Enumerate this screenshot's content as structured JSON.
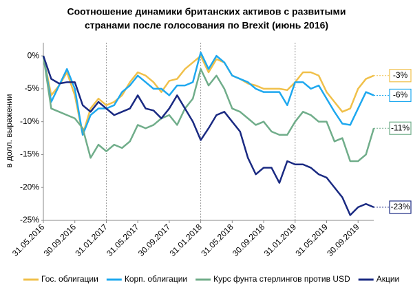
{
  "chart_data": {
    "type": "line",
    "title": [
      "Соотношение динамики британских активов с развитыми",
      "странами после голосования по Brexit (июнь 2016)"
    ],
    "y_label": "в долл. выражении",
    "categories": [
      "31.05.2016",
      null,
      null,
      null,
      "30.09.2016",
      null,
      null,
      null,
      "31.01.2017",
      null,
      null,
      null,
      "31.05.2017",
      null,
      null,
      null,
      "30.09.2017",
      null,
      null,
      null,
      "31.01.2018",
      null,
      null,
      null,
      "31.05.2018",
      null,
      null,
      null,
      "30.09.2018",
      null,
      null,
      null,
      "31.01.2019",
      null,
      null,
      null,
      "31.05.2019",
      null,
      null,
      null,
      "30.09.2019",
      null,
      null
    ],
    "ylim": [
      -25,
      2
    ],
    "yticks": [
      {
        "value": 0,
        "label": "0%"
      },
      {
        "value": -5,
        "label": "-5%"
      },
      {
        "value": -10,
        "label": "-10%"
      },
      {
        "value": -15,
        "label": "-15%"
      },
      {
        "value": -20,
        "label": "-20%"
      },
      {
        "value": -25,
        "label": "-25%"
      }
    ],
    "vlines": [
      8,
      20,
      32
    ],
    "grid": false,
    "legend": "bottom",
    "series": [
      {
        "name": "Гос. облигации",
        "color": "#f0c04a",
        "values": [
          0,
          -6,
          -4.5,
          -2.5,
          -6,
          -12,
          -8,
          -6.5,
          -7.5,
          -7,
          -6,
          -4,
          -2.5,
          -3,
          -4,
          -5.5,
          -3.8,
          -3.5,
          -2,
          -1,
          0,
          -2.5,
          -0.5,
          -1,
          -3,
          -3.5,
          -4.2,
          -4.5,
          -5,
          -5,
          -5,
          -5.2,
          -4,
          -2.5,
          -2.5,
          -3,
          -5.5,
          -7,
          -8.5,
          -8,
          -5,
          -3.5,
          -3
        ],
        "value_labels": [
          null,
          null,
          null,
          null,
          null,
          null,
          null,
          null,
          null,
          null,
          null,
          null,
          null,
          null,
          null,
          null,
          null,
          null,
          null,
          null,
          null,
          null,
          null,
          null,
          null,
          null,
          null,
          null,
          null,
          null,
          null,
          null,
          null,
          null,
          null,
          null,
          null,
          null,
          null,
          null,
          null,
          null,
          "-3%"
        ]
      },
      {
        "name": "Корп. облигации",
        "color": "#1ea8ef",
        "values": [
          0,
          -7,
          -4.5,
          -2,
          -5,
          -12,
          -9,
          -8,
          -8,
          -7.5,
          -5.5,
          -4.5,
          -3,
          -4,
          -5,
          -5,
          -6,
          -4.5,
          -4.5,
          -4,
          0.5,
          -2,
          0,
          -1,
          -3,
          -3.5,
          -4,
          -5,
          -5.5,
          -5.5,
          -5.5,
          -7.5,
          -4,
          -4,
          -5,
          -4.5,
          -6.5,
          -8.5,
          -10.3,
          -10.5,
          -8,
          -5.5,
          -6
        ],
        "value_labels": [
          null,
          null,
          null,
          null,
          null,
          null,
          null,
          null,
          null,
          null,
          null,
          null,
          null,
          null,
          null,
          null,
          null,
          null,
          null,
          null,
          null,
          null,
          null,
          null,
          null,
          null,
          null,
          null,
          null,
          null,
          null,
          null,
          null,
          null,
          null,
          null,
          null,
          null,
          null,
          null,
          null,
          null,
          "-6%"
        ]
      },
      {
        "name": "Курс фунта стерлингов против USD",
        "color": "#70ad8a",
        "values": [
          0,
          -8,
          -8.5,
          -9,
          -9.5,
          -11,
          -15.5,
          -13.5,
          -14.5,
          -13.5,
          -14,
          -13,
          -10.5,
          -11,
          -10.5,
          -9.5,
          -9,
          -10.5,
          -8,
          -6.5,
          -2,
          -4.5,
          -3,
          -5,
          -8,
          -8.5,
          -9.5,
          -10.5,
          -10,
          -11.5,
          -12,
          -12,
          -10,
          -8.5,
          -9,
          -10,
          -10,
          -13,
          -12.5,
          -16,
          -16,
          -15,
          -11
        ],
        "value_labels": [
          null,
          null,
          null,
          null,
          null,
          null,
          null,
          null,
          null,
          null,
          null,
          null,
          null,
          null,
          null,
          null,
          null,
          null,
          null,
          null,
          null,
          null,
          null,
          null,
          null,
          null,
          null,
          null,
          null,
          null,
          null,
          null,
          null,
          null,
          null,
          null,
          null,
          null,
          null,
          null,
          null,
          null,
          "-11%"
        ]
      },
      {
        "name": "Акции",
        "color": "#1a2a82",
        "values": [
          0,
          -3.5,
          -4.2,
          -4,
          -4,
          -7.5,
          -8.5,
          -7,
          -8,
          -9,
          -8.5,
          -8,
          -6,
          -8,
          -8.3,
          -9.5,
          -8,
          -6,
          -8,
          -10,
          -12.8,
          -11,
          -9,
          -8.5,
          -10,
          -11.5,
          -15.5,
          -18,
          -17,
          -17,
          -19.3,
          -16,
          -16.5,
          -16.5,
          -17,
          -18,
          -18.5,
          -20,
          -21.5,
          -24.2,
          -23,
          -22.5,
          -23
        ],
        "value_labels": [
          null,
          null,
          null,
          null,
          null,
          null,
          null,
          null,
          null,
          null,
          null,
          null,
          null,
          null,
          null,
          null,
          null,
          null,
          null,
          null,
          null,
          null,
          null,
          null,
          null,
          null,
          null,
          null,
          null,
          null,
          null,
          null,
          null,
          null,
          null,
          null,
          null,
          null,
          null,
          null,
          null,
          null,
          "-23%"
        ]
      }
    ]
  }
}
